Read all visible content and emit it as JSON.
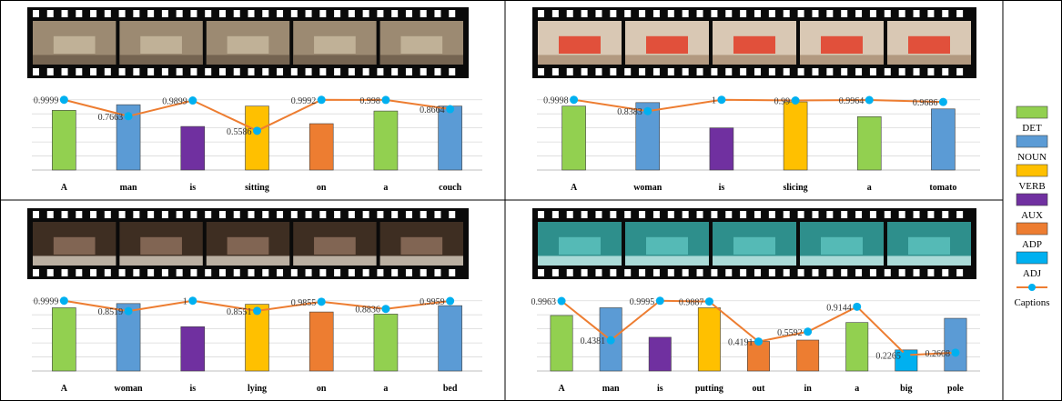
{
  "legend": [
    {
      "label": "DET",
      "color": "#92d050"
    },
    {
      "label": "NOUN",
      "color": "#5b9bd5"
    },
    {
      "label": "VERB",
      "color": "#ffc000"
    },
    {
      "label": "AUX",
      "color": "#7030a0"
    },
    {
      "label": "ADP",
      "color": "#ed7d31"
    },
    {
      "label": "ADJ",
      "color": "#00b0f0"
    },
    {
      "label": "Captions",
      "color": "#ed7d31",
      "marker_color": "#00b0f0",
      "kind": "line"
    }
  ],
  "chart_data": [
    {
      "type": "bar+line",
      "panel": "top-left",
      "video_frames": "sitting-on-couch",
      "categories": [
        "A",
        "man",
        "is",
        "sitting",
        "on",
        "a",
        "couch"
      ],
      "pos": [
        "DET",
        "NOUN",
        "AUX",
        "VERB",
        "ADP",
        "DET",
        "NOUN"
      ],
      "bar_values": [
        0.85,
        0.93,
        0.62,
        0.91,
        0.66,
        0.84,
        0.91
      ],
      "line_values": [
        0.9999,
        0.7663,
        0.9899,
        0.5586,
        0.9992,
        0.998,
        0.8664
      ],
      "line_labels": [
        "0.9999",
        "0.7663",
        "0.9899",
        "0.5586",
        "0.9992",
        "0.998",
        "0.8664"
      ],
      "ylim": [
        0,
        1.1
      ],
      "grid": true
    },
    {
      "type": "bar+line",
      "panel": "top-right",
      "video_frames": "slicing-tomato",
      "categories": [
        "A",
        "woman",
        "is",
        "slicing",
        "a",
        "tomato"
      ],
      "pos": [
        "DET",
        "NOUN",
        "AUX",
        "VERB",
        "DET",
        "NOUN"
      ],
      "bar_values": [
        0.91,
        0.96,
        0.6,
        0.97,
        0.76,
        0.87
      ],
      "line_values": [
        0.9998,
        0.8383,
        1,
        0.99,
        0.9964,
        0.9686
      ],
      "line_labels": [
        "0.9998",
        "0.8383",
        "1",
        "0.99",
        "0.9964",
        "0.9686"
      ],
      "ylim": [
        0,
        1.1
      ],
      "grid": true
    },
    {
      "type": "bar+line",
      "panel": "bottom-left",
      "video_frames": "lying-on-bed",
      "categories": [
        "A",
        "woman",
        "is",
        "lying",
        "on",
        "a",
        "bed"
      ],
      "pos": [
        "DET",
        "NOUN",
        "AUX",
        "VERB",
        "ADP",
        "DET",
        "NOUN"
      ],
      "bar_values": [
        0.9,
        0.96,
        0.63,
        0.95,
        0.84,
        0.81,
        0.93
      ],
      "line_values": [
        0.9999,
        0.8519,
        1,
        0.8551,
        0.9855,
        0.8836,
        0.9959
      ],
      "line_labels": [
        "0.9999",
        "0.8519",
        "1",
        "0.8551",
        "0.9855",
        "0.8836",
        "0.9959"
      ],
      "ylim": [
        0,
        1.1
      ],
      "grid": true
    },
    {
      "type": "bar+line",
      "panel": "bottom-right",
      "video_frames": "putting-out-pole",
      "categories": [
        "A",
        "man",
        "is",
        "putting",
        "out",
        "in",
        "a",
        "big",
        "pole"
      ],
      "pos": [
        "DET",
        "NOUN",
        "AUX",
        "VERB",
        "ADP",
        "ADP",
        "DET",
        "ADJ",
        "NOUN"
      ],
      "bar_values": [
        0.79,
        0.9,
        0.48,
        0.9,
        0.42,
        0.44,
        0.69,
        0.3,
        0.75
      ],
      "line_values": [
        0.9963,
        0.4381,
        0.9995,
        0.9887,
        0.4191,
        0.5592,
        0.9144,
        0.2265,
        0.2608
      ],
      "line_labels": [
        "0.9963",
        "0.4381",
        "0.9995",
        "0.9887",
        "0.4191",
        "0.5592",
        "0.9144",
        "0.2265",
        "0.2608"
      ],
      "ylim": [
        0,
        1.1
      ],
      "grid": true
    }
  ]
}
